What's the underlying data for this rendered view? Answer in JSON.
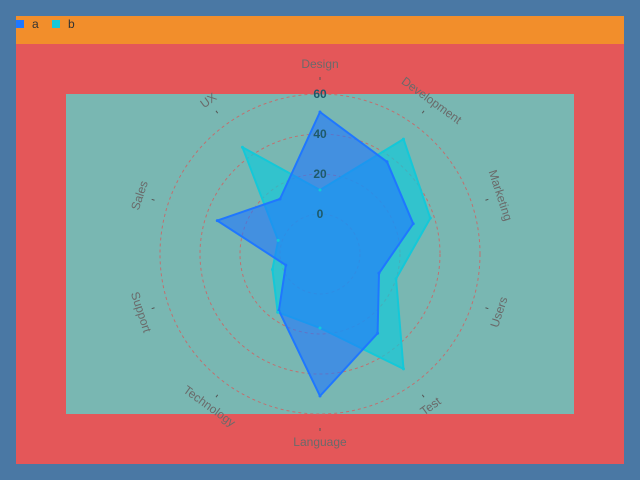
{
  "legend": [
    {
      "label": "a",
      "color": "#1f77ff"
    },
    {
      "label": "b",
      "color": "#14c8d8"
    }
  ],
  "colors": {
    "background": "#4a78a4",
    "frame": "#e45759",
    "legend_bar": "#f28e2b",
    "plot": "#79b7b2",
    "grid": "#c07070",
    "axis_label": "#6a6a6a",
    "tick_label": "#1e5a6a"
  },
  "chart_data": {
    "type": "radar",
    "categories": [
      "Design",
      "Development",
      "Marketing",
      "Users",
      "Test",
      "Language",
      "Technology",
      "Support",
      "Sales",
      "UX"
    ],
    "radial_ticks": [
      0,
      20,
      40,
      60
    ],
    "rlim": [
      -20,
      60
    ],
    "grid": true,
    "legend_position": "top-left",
    "series": [
      {
        "name": "a",
        "color": "#1f77ff",
        "values": [
          51,
          37,
          29,
          11,
          29,
          51,
          15,
          -2,
          34,
          14
        ]
      },
      {
        "name": "b",
        "color": "#14c8d8",
        "values": [
          12,
          51,
          38,
          20,
          51,
          17,
          16,
          5,
          2,
          46
        ]
      }
    ]
  }
}
